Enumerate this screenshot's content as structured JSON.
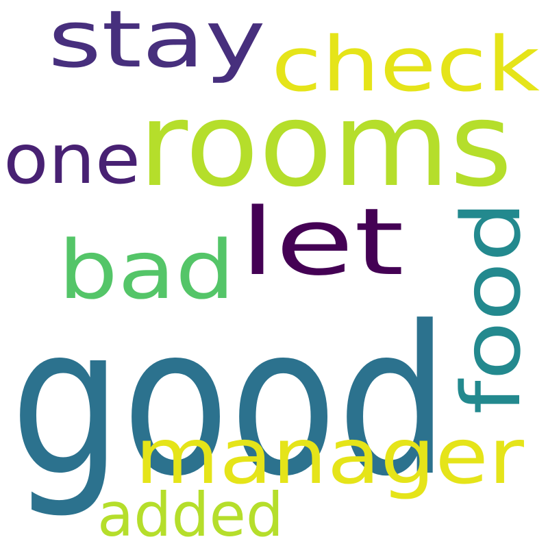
{
  "words": [
    {
      "id": "good",
      "text": "good",
      "color": "#2c728e"
    },
    {
      "id": "rooms",
      "text": "rooms",
      "color": "#b5de2b"
    },
    {
      "id": "manager",
      "text": "manager",
      "color": "#e5e419"
    },
    {
      "id": "food",
      "text": "food",
      "color": "#23898e"
    },
    {
      "id": "stay",
      "text": "stay",
      "color": "#472f7d"
    },
    {
      "id": "check",
      "text": "check",
      "color": "#e5e419"
    },
    {
      "id": "let",
      "text": "let",
      "color": "#440154"
    },
    {
      "id": "bad",
      "text": "bad",
      "color": "#54c568"
    },
    {
      "id": "one",
      "text": "one",
      "color": "#482173"
    },
    {
      "id": "added",
      "text": "added",
      "color": "#b5de2b"
    }
  ]
}
